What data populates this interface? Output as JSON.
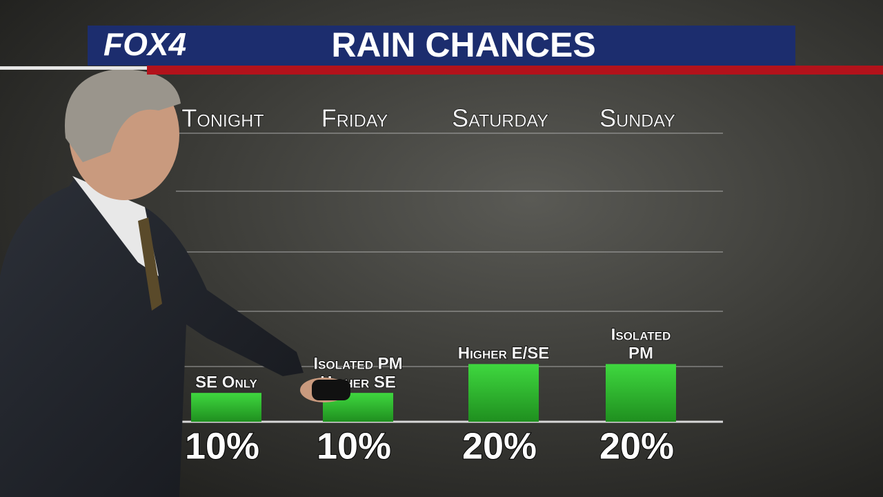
{
  "logo": "FOX4",
  "chart_data": {
    "type": "bar",
    "title": "RAIN CHANCES",
    "categories": [
      "Tonight",
      "Friday",
      "Saturday",
      "Sunday"
    ],
    "values": [
      10,
      10,
      20,
      20
    ],
    "value_labels": [
      "10%",
      "10%",
      "20%",
      "20%"
    ],
    "annotations": [
      [
        "SE Only"
      ],
      [
        "Isolated PM",
        "Higher SE"
      ],
      [
        "Higher E/SE"
      ],
      [
        "Isolated",
        "PM"
      ]
    ],
    "color": "#33c433",
    "ylim": [
      0,
      100
    ]
  }
}
